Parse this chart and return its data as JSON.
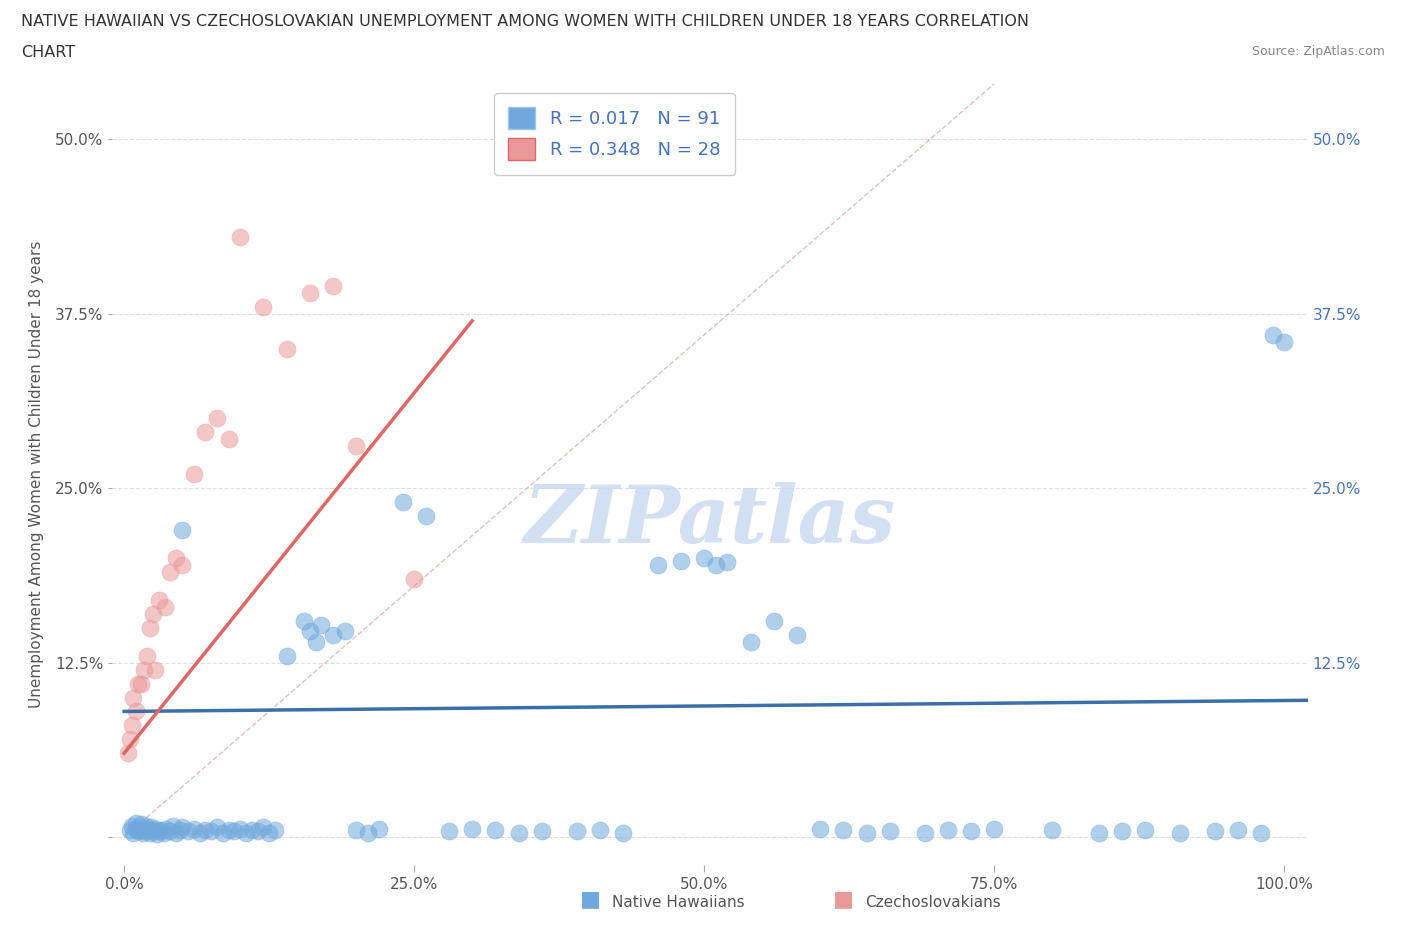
{
  "title_line1": "NATIVE HAWAIIAN VS CZECHOSLOVAKIAN UNEMPLOYMENT AMONG WOMEN WITH CHILDREN UNDER 18 YEARS CORRELATION",
  "title_line2": "CHART",
  "source": "Source: ZipAtlas.com",
  "ylabel": "Unemployment Among Women with Children Under 18 years",
  "xlim": [
    -0.01,
    1.02
  ],
  "ylim": [
    -0.02,
    0.54
  ],
  "xticks": [
    0.0,
    0.25,
    0.5,
    0.75,
    1.0
  ],
  "xticklabels": [
    "0.0%",
    "25.0%",
    "50.0%",
    "75.0%",
    "100.0%"
  ],
  "yticks": [
    0.0,
    0.125,
    0.25,
    0.375,
    0.5
  ],
  "left_yticklabels": [
    "",
    "12.5%",
    "25.0%",
    "37.5%",
    "50.0%"
  ],
  "right_yticklabels": [
    "",
    "12.5%",
    "25.0%",
    "37.5%",
    "50.0%"
  ],
  "right_ytick_color": "#4472c4",
  "left_ytick_color": "#555555",
  "legend_R1": "R = 0.017",
  "legend_N1": "N = 91",
  "legend_R2": "R = 0.348",
  "legend_N2": "N = 28",
  "blue_color": "#6fa8dc",
  "pink_color": "#ea9999",
  "blue_line_color": "#3c6ea8",
  "pink_line_color": "#e06666",
  "watermark": "ZIPatlas",
  "background_color": "#ffffff",
  "grid_color": "#dddddd",
  "title_color": "#333333",
  "source_color": "#888888",
  "label_color": "#555555",
  "nh_x": [
    0.005,
    0.007,
    0.008,
    0.01,
    0.01,
    0.012,
    0.013,
    0.014,
    0.015,
    0.016,
    0.017,
    0.018,
    0.019,
    0.02,
    0.022,
    0.023,
    0.025,
    0.027,
    0.028,
    0.03,
    0.032,
    0.034,
    0.036,
    0.04,
    0.042,
    0.045,
    0.048,
    0.05,
    0.055,
    0.06,
    0.065,
    0.07,
    0.075,
    0.08,
    0.085,
    0.09,
    0.095,
    0.1,
    0.105,
    0.11,
    0.115,
    0.12,
    0.125,
    0.13,
    0.14,
    0.155,
    0.16,
    0.165,
    0.17,
    0.18,
    0.19,
    0.2,
    0.21,
    0.22,
    0.24,
    0.26,
    0.28,
    0.3,
    0.32,
    0.34,
    0.36,
    0.39,
    0.41,
    0.43,
    0.46,
    0.48,
    0.5,
    0.51,
    0.52,
    0.54,
    0.56,
    0.58,
    0.6,
    0.62,
    0.64,
    0.66,
    0.69,
    0.71,
    0.73,
    0.75,
    0.8,
    0.84,
    0.86,
    0.88,
    0.91,
    0.94,
    0.96,
    0.98,
    0.99,
    1.0,
    0.05
  ],
  "nh_y": [
    0.005,
    0.008,
    0.003,
    0.006,
    0.01,
    0.004,
    0.007,
    0.005,
    0.009,
    0.003,
    0.006,
    0.004,
    0.008,
    0.005,
    0.003,
    0.007,
    0.004,
    0.006,
    0.002,
    0.004,
    0.005,
    0.003,
    0.006,
    0.004,
    0.008,
    0.003,
    0.005,
    0.007,
    0.004,
    0.006,
    0.003,
    0.005,
    0.004,
    0.007,
    0.003,
    0.005,
    0.004,
    0.006,
    0.003,
    0.005,
    0.004,
    0.007,
    0.003,
    0.005,
    0.13,
    0.155,
    0.148,
    0.14,
    0.152,
    0.145,
    0.148,
    0.005,
    0.003,
    0.006,
    0.24,
    0.23,
    0.004,
    0.006,
    0.005,
    0.003,
    0.004,
    0.004,
    0.005,
    0.003,
    0.195,
    0.198,
    0.2,
    0.195,
    0.197,
    0.14,
    0.155,
    0.145,
    0.006,
    0.005,
    0.003,
    0.004,
    0.003,
    0.005,
    0.004,
    0.006,
    0.005,
    0.003,
    0.004,
    0.005,
    0.003,
    0.004,
    0.005,
    0.003,
    0.36,
    0.355,
    0.22
  ],
  "cz_x": [
    0.003,
    0.005,
    0.007,
    0.008,
    0.01,
    0.012,
    0.015,
    0.017,
    0.02,
    0.022,
    0.025,
    0.027,
    0.03,
    0.035,
    0.04,
    0.045,
    0.05,
    0.06,
    0.07,
    0.08,
    0.09,
    0.1,
    0.12,
    0.14,
    0.16,
    0.18,
    0.2,
    0.25
  ],
  "cz_y": [
    0.06,
    0.07,
    0.08,
    0.1,
    0.09,
    0.11,
    0.11,
    0.12,
    0.13,
    0.15,
    0.16,
    0.12,
    0.17,
    0.165,
    0.19,
    0.2,
    0.195,
    0.26,
    0.29,
    0.3,
    0.285,
    0.43,
    0.38,
    0.35,
    0.39,
    0.395,
    0.28,
    0.185
  ],
  "nh_line_x": [
    0.0,
    1.02
  ],
  "nh_line_y": [
    0.09,
    0.098
  ],
  "cz_line_x": [
    0.0,
    0.3
  ],
  "cz_line_y": [
    0.06,
    0.37
  ]
}
